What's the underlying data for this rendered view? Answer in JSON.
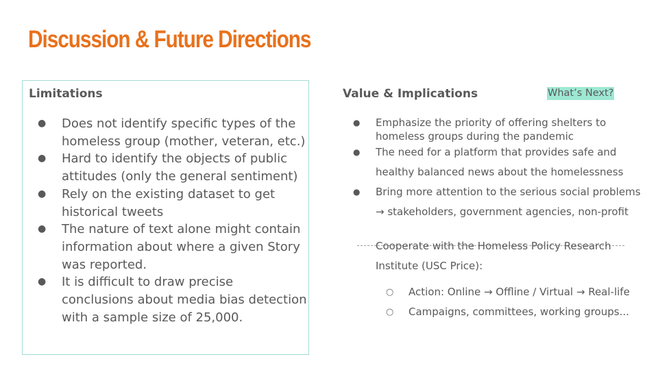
{
  "title": "Discussion & Future Directions",
  "limitations": {
    "heading": "Limitations",
    "bullet": "●",
    "items": [
      "Does not identify specific types of the homeless group (mother, veteran, etc.)",
      "Hard to identify the objects of public attitudes (only the general sentiment)",
      "Rely on the existing dataset to get historical tweets",
      "The nature of text alone might contain information about where a given Story was reported.",
      "It is difficult to draw precise conclusions about media bias detection with a sample size of 25,000."
    ]
  },
  "value": {
    "heading": "Value & Implications",
    "whats_next": "What’s Next?",
    "bullet": "●",
    "items": [
      "Emphasize the priority of offering shelters to homeless groups during the pandemic",
      "The need for a platform that provides safe and healthy balanced news about the homelessness",
      "Bring more attention to the serious social problems → stakeholders, government agencies, non-profit"
    ],
    "cooperate": "Cooperate with the Homeless Policy Research Institute (USC Price):",
    "sub_bullet": "○",
    "sub_items": [
      "Action: Online → Offline / Virtual → Real-life",
      "Campaigns, committees, working groups..."
    ]
  },
  "colors": {
    "title": "#e8711c",
    "box_border": "#a4dcd6",
    "highlight": "#9de8d3",
    "text": "#595959"
  }
}
